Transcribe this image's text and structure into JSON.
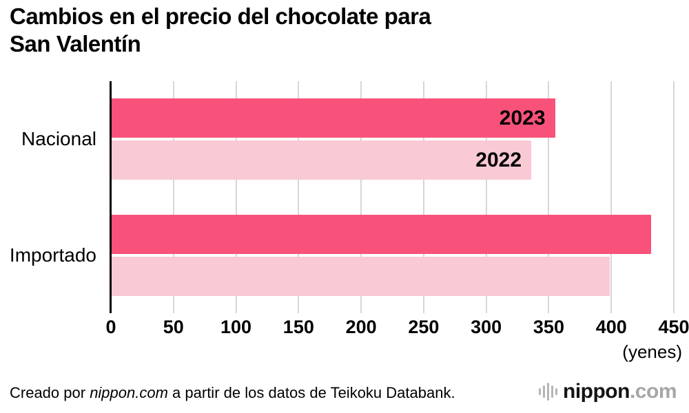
{
  "title_lines": [
    "Cambios en el precio del chocolate para",
    "San Valentín"
  ],
  "chart_data": {
    "type": "bar",
    "orientation": "horizontal",
    "title": "Cambios en el precio del chocolate para San Valentín",
    "categories": [
      "Nacional",
      "Importado"
    ],
    "series": [
      {
        "name": "2023",
        "color": "#f8527a",
        "values": [
          355,
          432
        ]
      },
      {
        "name": "2022",
        "color": "#f9c9d4",
        "values": [
          336,
          399
        ]
      }
    ],
    "ticks": [
      0,
      50,
      100,
      150,
      200,
      250,
      300,
      350,
      400,
      450
    ],
    "xlim": [
      0,
      450
    ],
    "unit_label": "(yenes)",
    "grid": true,
    "legend_position": "inside-first-bars"
  },
  "footer": {
    "credit_prefix": "Creado por ",
    "credit_source": "nippon.com",
    "credit_suffix": " a partir de los datos de Teikoku Databank.",
    "logo_main": "nippon",
    "logo_domain": ".com"
  }
}
